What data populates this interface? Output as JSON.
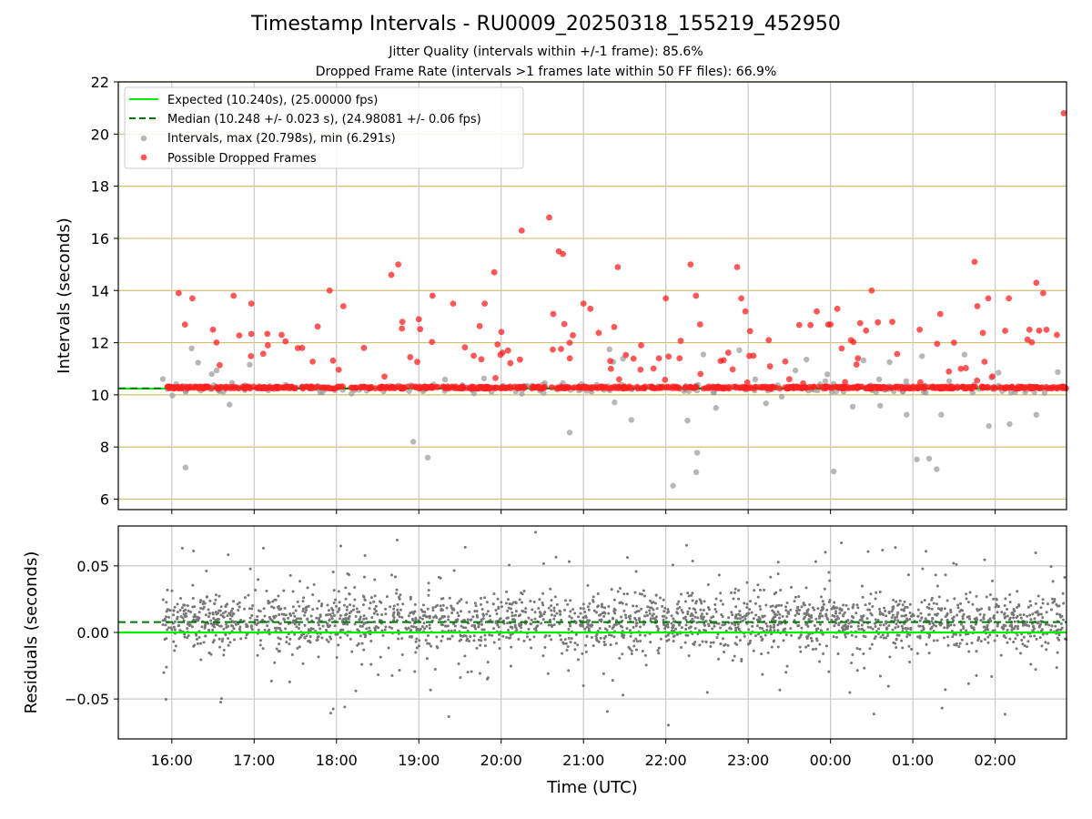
{
  "title": "Timestamp Intervals - RU0009_20250318_155219_452950",
  "subtitle1": "Jitter Quality (intervals within +/-1 frame): 85.6%",
  "subtitle2": "Dropped Frame Rate (intervals >1 frames late within 50 FF files): 66.9%",
  "colors": {
    "expected": "#00ee00",
    "median": "#007700",
    "intervals": "#999999",
    "dropped": "#ff2020",
    "residual": "#777777",
    "hgrid_top": "#d4be72",
    "grid": "#c8c8c8"
  },
  "chart_data": [
    {
      "type": "scatter",
      "panel": "top",
      "xlabel": "",
      "ylabel": "Intervals (seconds)",
      "xlim": [
        "15:21",
        "02:52"
      ],
      "ylim": [
        5.6,
        22
      ],
      "yticks": [
        6,
        8,
        10,
        12,
        14,
        16,
        18,
        20,
        22
      ],
      "grid": true,
      "legend_position": "top-left",
      "expected": {
        "name": "Expected (10.240s), (25.00000 fps)",
        "value": 10.24
      },
      "median": {
        "name": "Median (10.248 +/- 0.023 s), (24.98081 +/- 0.06 fps)",
        "value": 10.248
      },
      "intervals_series": {
        "name": "Intervals, max (20.798s), min (6.291s)",
        "max": 20.798,
        "min": 6.291
      },
      "dropped_series": {
        "name": "Possible Dropped Frames",
        "points": [
          [
            "16:05",
            13.9
          ],
          [
            "16:15",
            13.7
          ],
          [
            "16:30",
            12.5
          ],
          [
            "16:45",
            13.8
          ],
          [
            "16:58",
            13.5
          ],
          [
            "17:10",
            11.9
          ],
          [
            "17:20",
            12.3
          ],
          [
            "17:35",
            11.8
          ],
          [
            "17:55",
            14.0
          ],
          [
            "18:05",
            13.4
          ],
          [
            "18:20",
            11.8
          ],
          [
            "18:35",
            10.7
          ],
          [
            "18:40",
            14.6
          ],
          [
            "18:45",
            15.0
          ],
          [
            "18:48",
            12.8
          ],
          [
            "19:00",
            12.9
          ],
          [
            "19:10",
            13.8
          ],
          [
            "19:25",
            13.5
          ],
          [
            "19:40",
            11.5
          ],
          [
            "19:48",
            13.5
          ],
          [
            "19:55",
            14.7
          ],
          [
            "20:05",
            11.7
          ],
          [
            "20:15",
            16.3
          ],
          [
            "20:35",
            16.8
          ],
          [
            "20:38",
            13.1
          ],
          [
            "20:42",
            15.5
          ],
          [
            "20:45",
            15.4
          ],
          [
            "20:50",
            11.4
          ],
          [
            "21:00",
            13.5
          ],
          [
            "21:05",
            13.3
          ],
          [
            "21:20",
            11.0
          ],
          [
            "21:25",
            14.9
          ],
          [
            "21:42",
            11.9
          ],
          [
            "21:55",
            11.4
          ],
          [
            "22:00",
            13.7
          ],
          [
            "22:10",
            11.4
          ],
          [
            "22:18",
            15.0
          ],
          [
            "22:22",
            13.8
          ],
          [
            "22:25",
            12.7
          ],
          [
            "22:40",
            11.3
          ],
          [
            "22:52",
            14.9
          ],
          [
            "22:55",
            13.7
          ],
          [
            "22:58",
            13.2
          ],
          [
            "23:15",
            12.1
          ],
          [
            "23:30",
            10.6
          ],
          [
            "23:50",
            13.2
          ],
          [
            "24:00",
            12.7
          ],
          [
            "24:05",
            13.3
          ],
          [
            "24:15",
            12.1
          ],
          [
            "24:20",
            11.4
          ],
          [
            "24:30",
            14.0
          ],
          [
            "24:45",
            12.8
          ],
          [
            "25:05",
            12.5
          ],
          [
            "25:20",
            13.1
          ],
          [
            "25:30",
            12.0
          ],
          [
            "25:35",
            11.0
          ],
          [
            "25:45",
            15.1
          ],
          [
            "25:47",
            13.4
          ],
          [
            "25:55",
            13.7
          ],
          [
            "26:10",
            13.7
          ],
          [
            "26:25",
            12.5
          ],
          [
            "26:30",
            14.3
          ],
          [
            "26:35",
            13.9
          ],
          [
            "26:45",
            12.3
          ],
          [
            "26:50",
            20.8
          ]
        ]
      }
    },
    {
      "type": "scatter",
      "panel": "bottom",
      "xlabel": "Time (UTC)",
      "ylabel": "Residuals (seconds)",
      "xlim": [
        "15:21",
        "02:52"
      ],
      "ylim": [
        -0.08,
        0.08
      ],
      "yticks": [
        -0.05,
        0.0,
        0.05
      ],
      "ytick_labels": [
        "−0.05",
        "0.00",
        "0.05"
      ],
      "xticks": [
        "16:00",
        "17:00",
        "18:00",
        "19:00",
        "20:00",
        "21:00",
        "22:00",
        "23:00",
        "00:00",
        "01:00",
        "02:00"
      ],
      "expected_residual": 0.0,
      "median_residual": 0.0078,
      "grid": true
    }
  ]
}
